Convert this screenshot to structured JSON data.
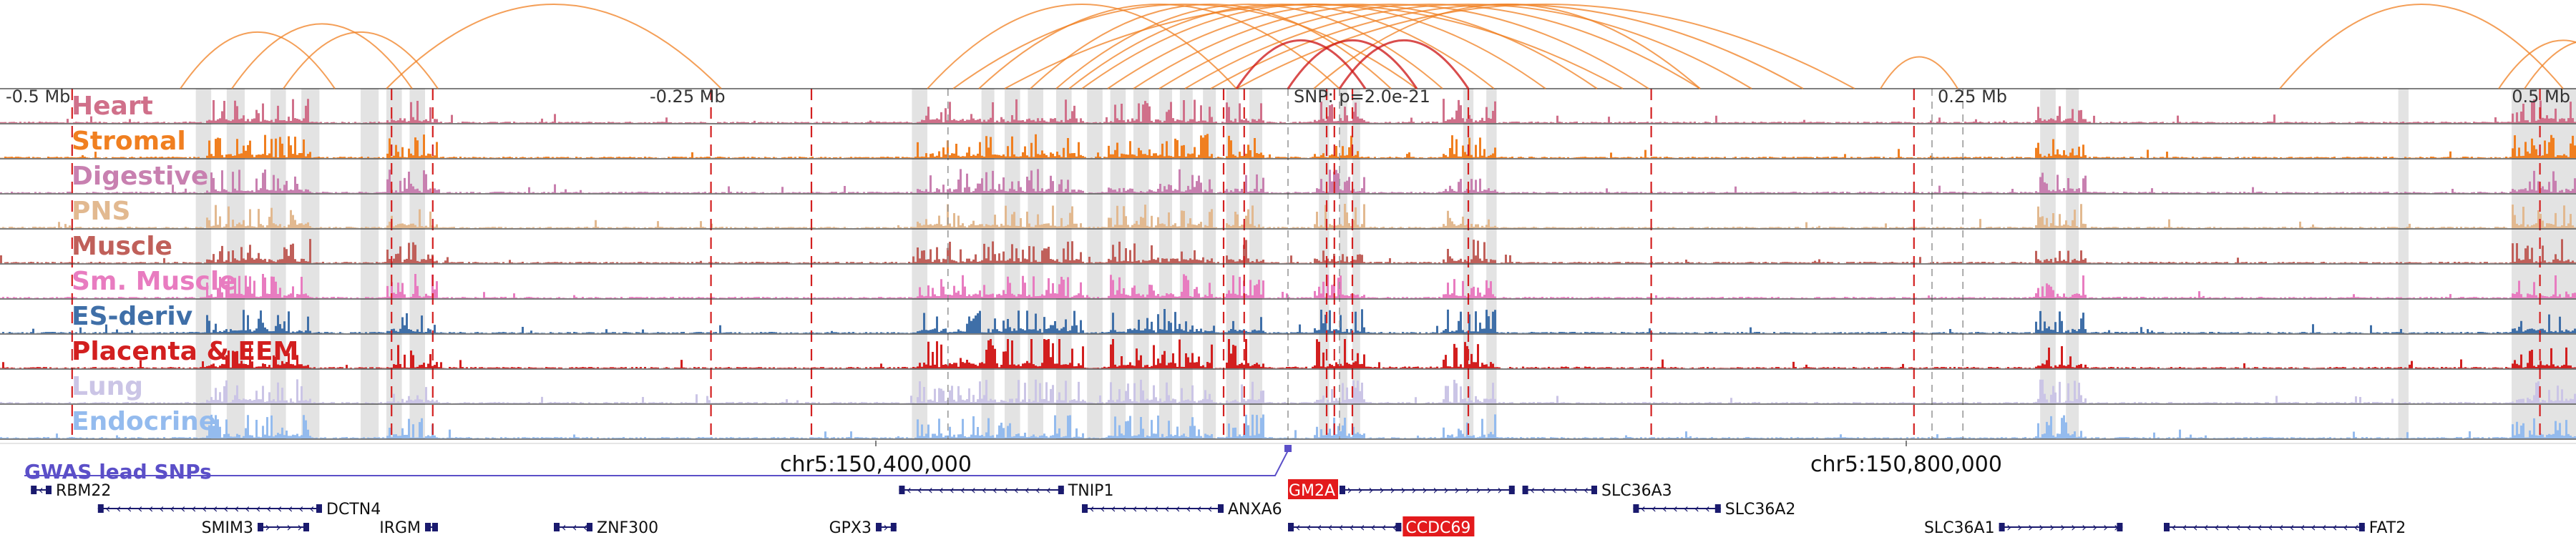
{
  "chart_data": {
    "type": "genome-browser-tracks",
    "region": {
      "center_label": "SNP: p=2.0e-21",
      "start_mb": -0.5,
      "end_mb": 0.5
    },
    "coordinate_ticks": [
      {
        "label": "-0.5 Mb",
        "pos": -0.5
      },
      {
        "label": "-0.25 Mb",
        "pos": -0.25
      },
      {
        "label": "0.25 Mb",
        "pos": 0.25
      },
      {
        "label": "0.5 Mb",
        "pos": 0.5
      }
    ],
    "genomic_axis_labels": [
      {
        "label": "chr5:150,400,000",
        "pos": -0.16
      },
      {
        "label": "chr5:150,800,000",
        "pos": 0.24
      }
    ],
    "tracks": [
      {
        "name": "Heart",
        "color": "#d0708a"
      },
      {
        "name": "Stromal",
        "color": "#f07f20"
      },
      {
        "name": "Digestive",
        "color": "#c880b0"
      },
      {
        "name": "PNS",
        "color": "#e2b990"
      },
      {
        "name": "Muscle",
        "color": "#c0605a"
      },
      {
        "name": "Sm. Muscle",
        "color": "#e87cc0"
      },
      {
        "name": "ES-deriv",
        "color": "#3f6fa8"
      },
      {
        "name": "Placenta & EEM",
        "color": "#d21f1f"
      },
      {
        "name": "Lung",
        "color": "#cbc5e6"
      },
      {
        "name": "Endocrine",
        "color": "#94bbee"
      }
    ],
    "gwas": {
      "label": "GWAS lead SNPs",
      "snp_pos": 0.0,
      "color": "#5b4fc8"
    },
    "loop_color": "#f07f20",
    "highlight_loop_color": "#cc1111",
    "red_dashed_positions": [
      -0.472,
      -0.348,
      -0.332,
      -0.224,
      -0.185,
      -0.025,
      -0.017,
      0.015,
      0.018,
      0.025,
      0.07,
      0.141,
      0.243,
      0.486
    ],
    "gray_dashed_positions": [
      -0.132,
      0.0,
      0.02,
      0.25,
      0.262
    ],
    "highlight_regions": [
      [
        -0.424,
        -0.418
      ],
      [
        -0.412,
        -0.405
      ],
      [
        -0.395,
        -0.389
      ],
      [
        -0.383,
        -0.376
      ],
      [
        -0.36,
        -0.353
      ],
      [
        -0.35,
        -0.344
      ],
      [
        -0.341,
        -0.335
      ],
      [
        -0.146,
        -0.14
      ],
      [
        -0.119,
        -0.114
      ],
      [
        -0.11,
        -0.104
      ],
      [
        -0.101,
        -0.095
      ],
      [
        -0.09,
        -0.084
      ],
      [
        -0.078,
        -0.072
      ],
      [
        -0.069,
        -0.063
      ],
      [
        -0.06,
        -0.054
      ],
      [
        -0.05,
        -0.045
      ],
      [
        -0.042,
        -0.037
      ],
      [
        -0.033,
        -0.028
      ],
      [
        -0.024,
        -0.019
      ],
      [
        -0.015,
        -0.01
      ],
      [
        0.012,
        0.016
      ],
      [
        0.02,
        0.023
      ],
      [
        0.025,
        0.028
      ],
      [
        0.068,
        0.072
      ],
      [
        0.077,
        0.081
      ],
      [
        0.292,
        0.298
      ],
      [
        0.302,
        0.307
      ],
      [
        0.431,
        0.435
      ],
      [
        0.475,
        0.5
      ]
    ],
    "peak_regions": [
      [
        -0.42,
        -0.38
      ],
      [
        -0.35,
        -0.33
      ],
      [
        -0.145,
        -0.08
      ],
      [
        -0.07,
        -0.03
      ],
      [
        -0.025,
        -0.01
      ],
      [
        0.01,
        0.03
      ],
      [
        0.06,
        0.08
      ],
      [
        0.29,
        0.31
      ],
      [
        0.475,
        0.5
      ]
    ],
    "loops": [
      [
        -0.43,
        -0.37
      ],
      [
        -0.41,
        -0.34
      ],
      [
        -0.39,
        -0.33
      ],
      [
        -0.35,
        -0.22
      ],
      [
        -0.14,
        -0.02
      ],
      [
        -0.12,
        0.02
      ],
      [
        -0.1,
        0.04
      ],
      [
        -0.09,
        0.06
      ],
      [
        -0.085,
        0.08
      ],
      [
        -0.08,
        0.1
      ],
      [
        -0.07,
        0.12
      ],
      [
        -0.06,
        0.14
      ],
      [
        -0.05,
        0.16
      ],
      [
        -0.04,
        0.18
      ],
      [
        -0.03,
        0.2
      ],
      [
        -0.02,
        0.22
      ],
      [
        -0.11,
        0.13
      ],
      [
        -0.13,
        0.05
      ],
      [
        0.01,
        0.16
      ],
      [
        0.23,
        0.26
      ],
      [
        0.385,
        0.495
      ],
      [
        0.47,
        0.52
      ],
      [
        0.48,
        0.53
      ]
    ],
    "highlight_loops": [
      [
        -0.02,
        0.03
      ],
      [
        0.0,
        0.05
      ],
      [
        0.02,
        0.07
      ]
    ],
    "genes": [
      {
        "name": "RBM22",
        "start": -0.488,
        "end": -0.48,
        "row": 0,
        "strand": "-",
        "label_side": "right",
        "highlight": false
      },
      {
        "name": "DCTN4",
        "start": -0.462,
        "end": -0.375,
        "row": 1,
        "strand": "-",
        "label_side": "right",
        "highlight": false
      },
      {
        "name": "SMIM3",
        "start": -0.4,
        "end": -0.38,
        "row": 2,
        "strand": "+",
        "label_side": "left",
        "highlight": false
      },
      {
        "name": "IRGM",
        "start": -0.335,
        "end": -0.33,
        "row": 2,
        "strand": "+",
        "label_side": "left",
        "highlight": false
      },
      {
        "name": "ZNF300",
        "start": -0.285,
        "end": -0.27,
        "row": 2,
        "strand": "-",
        "label_side": "right",
        "highlight": false
      },
      {
        "name": "GPX3",
        "start": -0.16,
        "end": -0.152,
        "row": 2,
        "strand": "+",
        "label_side": "left",
        "highlight": false
      },
      {
        "name": "TNIP1",
        "start": -0.151,
        "end": -0.087,
        "row": 0,
        "strand": "-",
        "label_side": "right",
        "highlight": false
      },
      {
        "name": "ANXA6",
        "start": -0.08,
        "end": -0.025,
        "row": 1,
        "strand": "-",
        "label_side": "right",
        "highlight": false
      },
      {
        "name": "GM2A",
        "start": 0.02,
        "end": 0.088,
        "row": 0,
        "strand": "+",
        "label_side": "left",
        "highlight": true
      },
      {
        "name": "CCDC69",
        "start": 0.0,
        "end": 0.044,
        "row": 2,
        "strand": "-",
        "label_side": "right",
        "highlight": true
      },
      {
        "name": "SLC36A3",
        "start": 0.091,
        "end": 0.12,
        "row": 0,
        "strand": "-",
        "label_side": "right",
        "highlight": false
      },
      {
        "name": "SLC36A2",
        "start": 0.134,
        "end": 0.168,
        "row": 1,
        "strand": "-",
        "label_side": "right",
        "highlight": false
      },
      {
        "name": "SLC36A1",
        "start": 0.276,
        "end": 0.324,
        "row": 2,
        "strand": "+",
        "label_side": "left",
        "highlight": false
      },
      {
        "name": "FAT2",
        "start": 0.34,
        "end": 0.418,
        "row": 2,
        "strand": "-",
        "label_side": "right",
        "highlight": false
      }
    ]
  }
}
